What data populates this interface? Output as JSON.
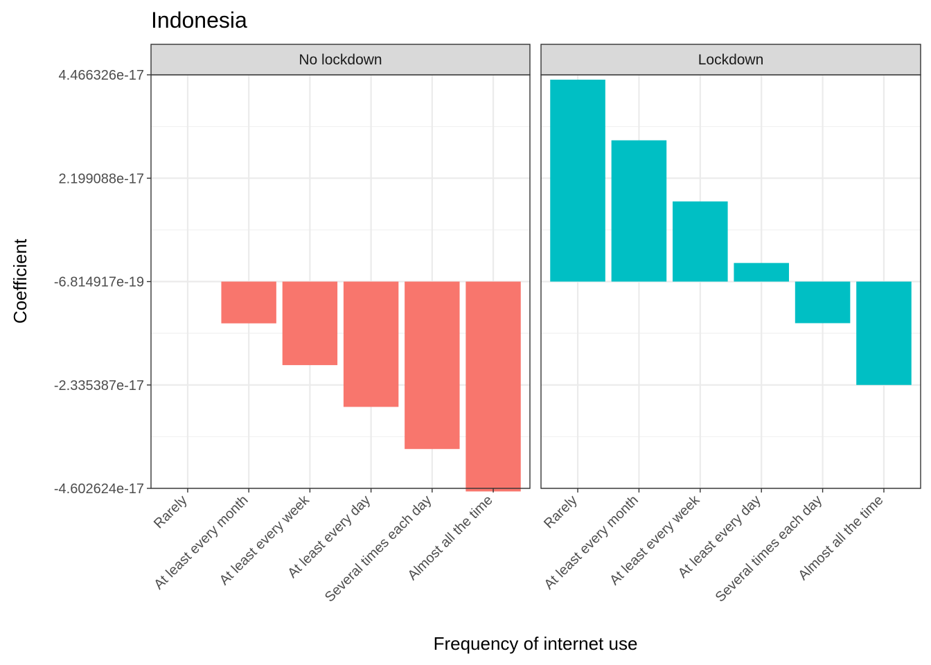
{
  "chart_data": {
    "type": "bar",
    "title": "Indonesia",
    "xlabel": "Frequency of internet use",
    "ylabel": "Coefficient",
    "categories": [
      "Rarely",
      "At least every month",
      "At least every week",
      "At least every day",
      "Several times each day",
      "Almost all the time"
    ],
    "y_ticks": [
      4.466326e-17,
      2.199088e-17,
      -6.814917e-19,
      -2.335387e-17,
      -4.602624e-17
    ],
    "y_tick_labels": [
      "4.466326e-17",
      "2.199088e-17",
      "-6.814917e-19",
      "-2.335387e-17",
      "-4.602624e-17"
    ],
    "ylim": [
      -4.602624e-17,
      4.466326e-17
    ],
    "baseline": -6.814917e-19,
    "grid": true,
    "legend": "none",
    "panels": [
      {
        "name": "No lockdown",
        "color": "#F8766D",
        "values": [
          -6.814917e-19,
          -9.84e-18,
          -1.9e-17,
          -2.816e-17,
          -3.74e-17,
          -4.67e-17
        ]
      },
      {
        "name": "Lockdown",
        "color": "#00BFC4",
        "values": [
          4.36e-17,
          3.03e-17,
          1.69e-17,
          3.4e-18,
          -9.8e-18,
          -2.335e-17
        ]
      }
    ]
  }
}
